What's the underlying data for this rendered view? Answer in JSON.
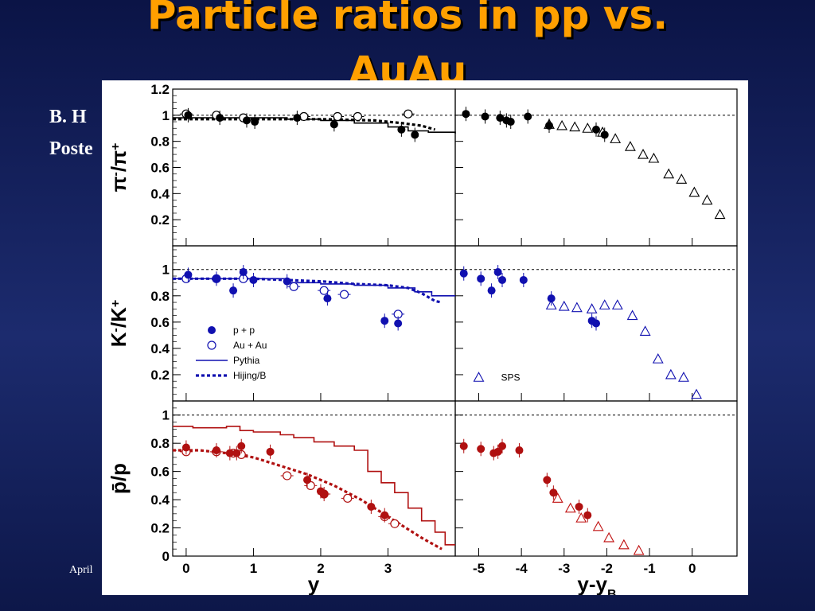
{
  "slide": {
    "title_line1": "Particle ratios in pp vs.",
    "title_line2": "AuAu",
    "side_line1": "B. H",
    "side_line2": "Poste",
    "footer": "April"
  },
  "chart_data": {
    "type": "scatter",
    "colors": {
      "pi": "#000000",
      "K": "#1010b0",
      "p": "#b01010",
      "sps_K": "#1010b0",
      "sps_p": "#c01010"
    },
    "xaxis_left": {
      "label": "y",
      "ticks": [
        "0",
        "1",
        "2",
        "3"
      ],
      "range": [
        -0.2,
        4.0
      ]
    },
    "xaxis_right": {
      "label": "y-y",
      "label_sub": "B",
      "ticks": [
        "-5",
        "-4",
        "-3",
        "-2",
        "-1",
        "0"
      ],
      "range": [
        -5.55,
        1.05
      ]
    },
    "legend": {
      "position": "lower-left of middle-left panel",
      "items": [
        "p + p",
        "Au + Au",
        "Pythia",
        "Hijing/B"
      ],
      "sps_label": "SPS"
    },
    "panels": [
      {
        "id": "pi",
        "ylabel_main": "π",
        "ylabel_sup1": "-",
        "ylabel_mid": "/π",
        "ylabel_sup2": "+",
        "yrange": [
          0.0,
          1.2
        ],
        "yticks": [
          "0.2",
          "0.4",
          "0.6",
          "0.8",
          "1",
          "1.2"
        ],
        "ytick_values": [
          0.2,
          0.4,
          0.6,
          0.8,
          1.0,
          1.2
        ],
        "pp": [
          [
            0.03,
            1.0
          ],
          [
            0.5,
            0.98
          ],
          [
            0.9,
            0.96
          ],
          [
            1.02,
            0.95
          ],
          [
            1.65,
            0.98
          ],
          [
            2.2,
            0.93
          ],
          [
            3.2,
            0.89
          ],
          [
            3.4,
            0.85
          ]
        ],
        "auau": [
          [
            0.0,
            1.01
          ],
          [
            0.45,
            1.0
          ],
          [
            0.85,
            0.98
          ],
          [
            1.75,
            0.99
          ],
          [
            2.25,
            0.99
          ],
          [
            2.55,
            0.99
          ],
          [
            3.3,
            1.01
          ]
        ],
        "pythia": [
          [
            -0.2,
            0.98
          ],
          [
            1.0,
            0.98
          ],
          [
            1.5,
            0.97
          ],
          [
            2.0,
            0.96
          ],
          [
            2.5,
            0.94
          ],
          [
            3.0,
            0.91
          ],
          [
            3.3,
            0.88
          ],
          [
            3.6,
            0.87
          ],
          [
            4.0,
            0.86
          ]
        ],
        "hijing": [
          [
            -0.2,
            0.97
          ],
          [
            1.0,
            0.97
          ],
          [
            2.0,
            0.97
          ],
          [
            2.8,
            0.96
          ],
          [
            3.2,
            0.94
          ],
          [
            3.5,
            0.92
          ],
          [
            3.7,
            0.89
          ]
        ],
        "right_pp": [
          [
            -5.3,
            1.01
          ],
          [
            -4.85,
            0.99
          ],
          [
            -4.5,
            0.98
          ],
          [
            -4.35,
            0.96
          ],
          [
            -4.25,
            0.95
          ],
          [
            -3.85,
            0.99
          ],
          [
            -3.35,
            0.92
          ],
          [
            -2.25,
            0.89
          ],
          [
            -2.05,
            0.85
          ]
        ],
        "right_sps": [
          [
            -3.35,
            0.93
          ],
          [
            -3.05,
            0.92
          ],
          [
            -2.75,
            0.91
          ],
          [
            -2.45,
            0.9
          ],
          [
            -2.1,
            0.87
          ],
          [
            -1.8,
            0.82
          ],
          [
            -1.45,
            0.76
          ],
          [
            -1.15,
            0.7
          ],
          [
            -0.9,
            0.67
          ],
          [
            -0.55,
            0.55
          ],
          [
            -0.25,
            0.51
          ],
          [
            0.05,
            0.41
          ],
          [
            0.35,
            0.35
          ],
          [
            0.65,
            0.24
          ]
        ]
      },
      {
        "id": "K",
        "ylabel_main": "K",
        "ylabel_sup1": "-",
        "ylabel_mid": "/K",
        "ylabel_sup2": "+",
        "yrange": [
          0.0,
          1.18
        ],
        "yticks": [
          "0.2",
          "0.4",
          "0.6",
          "0.8",
          "1"
        ],
        "ytick_values": [
          0.2,
          0.4,
          0.6,
          0.8,
          1.0
        ],
        "pp": [
          [
            0.03,
            0.96
          ],
          [
            0.45,
            0.93
          ],
          [
            0.7,
            0.84
          ],
          [
            0.85,
            0.98
          ],
          [
            1.0,
            0.92
          ],
          [
            1.5,
            0.91
          ],
          [
            2.1,
            0.78
          ],
          [
            2.95,
            0.61
          ],
          [
            3.15,
            0.59
          ]
        ],
        "auau": [
          [
            0.0,
            0.93
          ],
          [
            0.45,
            0.93
          ],
          [
            0.85,
            0.93
          ],
          [
            1.6,
            0.87
          ],
          [
            2.05,
            0.84
          ],
          [
            2.35,
            0.81
          ],
          [
            3.15,
            0.66
          ]
        ],
        "pythia": [
          [
            -0.2,
            0.93
          ],
          [
            1.0,
            0.93
          ],
          [
            1.5,
            0.9
          ],
          [
            2.0,
            0.89
          ],
          [
            2.5,
            0.88
          ],
          [
            3.0,
            0.86
          ],
          [
            3.4,
            0.83
          ],
          [
            3.65,
            0.8
          ],
          [
            4.0,
            0.8
          ]
        ],
        "hijing": [
          [
            -0.2,
            0.93
          ],
          [
            1.0,
            0.93
          ],
          [
            1.5,
            0.92
          ],
          [
            2.0,
            0.91
          ],
          [
            2.5,
            0.89
          ],
          [
            3.0,
            0.88
          ],
          [
            3.3,
            0.86
          ],
          [
            3.5,
            0.82
          ],
          [
            3.7,
            0.76
          ],
          [
            3.8,
            0.75
          ]
        ],
        "right_pp": [
          [
            -5.35,
            0.97
          ],
          [
            -4.95,
            0.93
          ],
          [
            -4.7,
            0.84
          ],
          [
            -4.55,
            0.98
          ],
          [
            -4.45,
            0.92
          ],
          [
            -3.95,
            0.92
          ],
          [
            -3.3,
            0.78
          ],
          [
            -2.35,
            0.61
          ],
          [
            -2.25,
            0.59
          ]
        ],
        "right_sps": [
          [
            -3.3,
            0.73
          ],
          [
            -3.0,
            0.72
          ],
          [
            -2.7,
            0.71
          ],
          [
            -2.35,
            0.7
          ],
          [
            -2.05,
            0.73
          ],
          [
            -1.75,
            0.73
          ],
          [
            -1.4,
            0.65
          ],
          [
            -1.1,
            0.53
          ],
          [
            -0.8,
            0.32
          ],
          [
            -0.5,
            0.2
          ],
          [
            -0.2,
            0.18
          ],
          [
            0.1,
            0.05
          ]
        ],
        "legend_sps_marker": [
          -5.0,
          0.18
        ]
      },
      {
        "id": "p",
        "ylabel_main": "p̄/p",
        "yrange": [
          0.0,
          1.1
        ],
        "yticks": [
          "0",
          "0.2",
          "0.4",
          "0.6",
          "0.8",
          "1"
        ],
        "ytick_values": [
          0.0,
          0.2,
          0.4,
          0.6,
          0.8,
          1.0
        ],
        "pp": [
          [
            0.0,
            0.77
          ],
          [
            0.45,
            0.75
          ],
          [
            0.65,
            0.73
          ],
          [
            0.75,
            0.73
          ],
          [
            0.82,
            0.78
          ],
          [
            1.25,
            0.74
          ],
          [
            1.8,
            0.54
          ],
          [
            2.0,
            0.46
          ],
          [
            2.05,
            0.44
          ],
          [
            2.75,
            0.35
          ],
          [
            2.95,
            0.29
          ]
        ],
        "auau": [
          [
            0.0,
            0.74
          ],
          [
            0.45,
            0.74
          ],
          [
            0.7,
            0.73
          ],
          [
            0.82,
            0.72
          ],
          [
            1.5,
            0.57
          ],
          [
            1.85,
            0.5
          ],
          [
            2.05,
            0.44
          ],
          [
            2.4,
            0.41
          ],
          [
            2.95,
            0.28
          ],
          [
            3.1,
            0.23
          ]
        ],
        "pythia": [
          [
            -0.2,
            0.92
          ],
          [
            0.1,
            0.91
          ],
          [
            0.4,
            0.91
          ],
          [
            0.6,
            0.92
          ],
          [
            0.8,
            0.89
          ],
          [
            1.0,
            0.88
          ],
          [
            1.4,
            0.86
          ],
          [
            1.6,
            0.84
          ],
          [
            1.9,
            0.81
          ],
          [
            2.2,
            0.78
          ],
          [
            2.5,
            0.75
          ],
          [
            2.7,
            0.6
          ],
          [
            2.9,
            0.52
          ],
          [
            3.1,
            0.45
          ],
          [
            3.3,
            0.34
          ],
          [
            3.5,
            0.25
          ],
          [
            3.7,
            0.17
          ],
          [
            3.85,
            0.08
          ],
          [
            4.0,
            0.08
          ]
        ],
        "hijing": [
          [
            -0.2,
            0.75
          ],
          [
            0.2,
            0.75
          ],
          [
            0.6,
            0.73
          ],
          [
            1.0,
            0.7
          ],
          [
            1.4,
            0.64
          ],
          [
            1.8,
            0.58
          ],
          [
            2.2,
            0.5
          ],
          [
            2.6,
            0.4
          ],
          [
            2.9,
            0.31
          ],
          [
            3.2,
            0.22
          ],
          [
            3.5,
            0.13
          ],
          [
            3.8,
            0.05
          ]
        ],
        "right_pp": [
          [
            -5.35,
            0.78
          ],
          [
            -4.95,
            0.76
          ],
          [
            -4.65,
            0.73
          ],
          [
            -4.55,
            0.74
          ],
          [
            -4.45,
            0.78
          ],
          [
            -4.05,
            0.75
          ],
          [
            -3.4,
            0.54
          ],
          [
            -3.25,
            0.45
          ],
          [
            -2.65,
            0.35
          ],
          [
            -2.45,
            0.29
          ]
        ],
        "right_sps": [
          [
            -3.15,
            0.41
          ],
          [
            -2.85,
            0.34
          ],
          [
            -2.6,
            0.27
          ],
          [
            -2.2,
            0.21
          ],
          [
            -1.95,
            0.13
          ],
          [
            -1.6,
            0.08
          ],
          [
            -1.25,
            0.04
          ]
        ]
      }
    ]
  }
}
